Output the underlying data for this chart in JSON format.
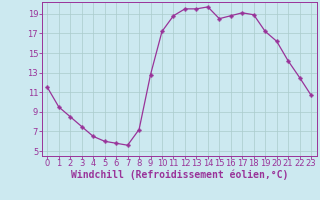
{
  "x": [
    0,
    1,
    2,
    3,
    4,
    5,
    6,
    7,
    8,
    9,
    10,
    11,
    12,
    13,
    14,
    15,
    16,
    17,
    18,
    19,
    20,
    21,
    22,
    23
  ],
  "y": [
    11.5,
    9.5,
    8.5,
    7.5,
    6.5,
    6.0,
    5.8,
    5.6,
    7.2,
    12.8,
    17.2,
    18.8,
    19.5,
    19.5,
    19.7,
    18.5,
    18.8,
    19.1,
    18.9,
    17.2,
    16.2,
    14.2,
    12.5,
    10.7
  ],
  "line_color": "#993399",
  "marker": "P",
  "marker_size": 2.5,
  "background_color": "#cce9f0",
  "grid_color": "#aacccc",
  "tick_color": "#993399",
  "label_color": "#993399",
  "xlabel": "Windchill (Refroidissement éolien,°C)",
  "xlim": [
    -0.5,
    23.5
  ],
  "ylim": [
    4.5,
    20.2
  ],
  "yticks": [
    5,
    7,
    9,
    11,
    13,
    15,
    17,
    19
  ],
  "xticks": [
    0,
    1,
    2,
    3,
    4,
    5,
    6,
    7,
    8,
    9,
    10,
    11,
    12,
    13,
    14,
    15,
    16,
    17,
    18,
    19,
    20,
    21,
    22,
    23
  ],
  "spine_color": "#993399",
  "tick_fontsize": 6.0,
  "xlabel_fontsize": 7.0
}
